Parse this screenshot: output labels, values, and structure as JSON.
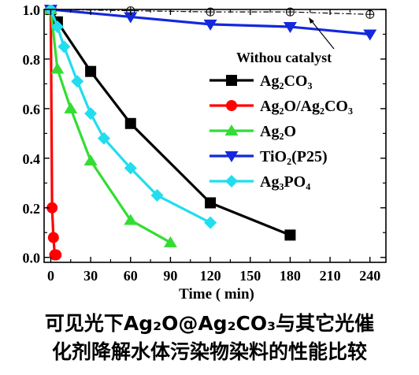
{
  "chart_data": {
    "type": "line",
    "title": "",
    "xlabel": "Time ( min)",
    "ylabel": "",
    "xlim": [
      -5,
      252
    ],
    "ylim": [
      -0.02,
      1.0
    ],
    "xticks": [
      "0",
      "30",
      "60",
      "90",
      "120",
      "150",
      "180",
      "210",
      "240"
    ],
    "yticks": [
      "0.0",
      "0.2",
      "0.4",
      "0.6",
      "0.8",
      "1.0"
    ],
    "grid": false,
    "legend_position": "right-center",
    "annotation": "Withou catalyst",
    "series": [
      {
        "name": "Withou catalyst",
        "color": "#000000",
        "marker": "circle-plus",
        "dash": "dashdot",
        "x": [
          0,
          60,
          120,
          180,
          240
        ],
        "y": [
          1.0,
          0.995,
          0.99,
          0.99,
          0.98
        ],
        "legend": false
      },
      {
        "name": "Ag₂CO₃",
        "color": "#000000",
        "marker": "square",
        "dash": "solid",
        "x": [
          0,
          5,
          30,
          60,
          120,
          180
        ],
        "y": [
          1.0,
          0.95,
          0.75,
          0.54,
          0.22,
          0.09
        ],
        "legend": true
      },
      {
        "name": "Ag₂O/Ag₂CO₃",
        "color": "#ff0000",
        "marker": "circle",
        "dash": "solid",
        "x": [
          0,
          1,
          2,
          3,
          4
        ],
        "y": [
          1.0,
          0.2,
          0.08,
          0.01,
          0.01
        ],
        "legend": true
      },
      {
        "name": "Ag₂O",
        "color": "#33dd33",
        "marker": "triangle-up",
        "dash": "solid",
        "x": [
          0,
          5,
          15,
          30,
          60,
          90
        ],
        "y": [
          1.0,
          0.76,
          0.6,
          0.39,
          0.15,
          0.06
        ],
        "legend": true
      },
      {
        "name": "TiO₂(P25)",
        "color": "#1428dc",
        "marker": "triangle-down",
        "dash": "solid",
        "x": [
          0,
          60,
          120,
          180,
          240
        ],
        "y": [
          1.0,
          0.97,
          0.94,
          0.93,
          0.9
        ],
        "legend": true
      },
      {
        "name": "Ag₃PO₄",
        "color": "#22ddee",
        "marker": "diamond",
        "dash": "solid",
        "x": [
          0,
          5,
          10,
          20,
          30,
          40,
          60,
          80,
          120
        ],
        "y": [
          1.0,
          0.93,
          0.85,
          0.71,
          0.58,
          0.48,
          0.36,
          0.25,
          0.14
        ],
        "legend": true
      }
    ]
  },
  "caption": {
    "line1": "可见光下Ag₂O@Ag₂CO₃与其它光催",
    "line2": "化剂降解水体污染物染料的性能比较"
  }
}
